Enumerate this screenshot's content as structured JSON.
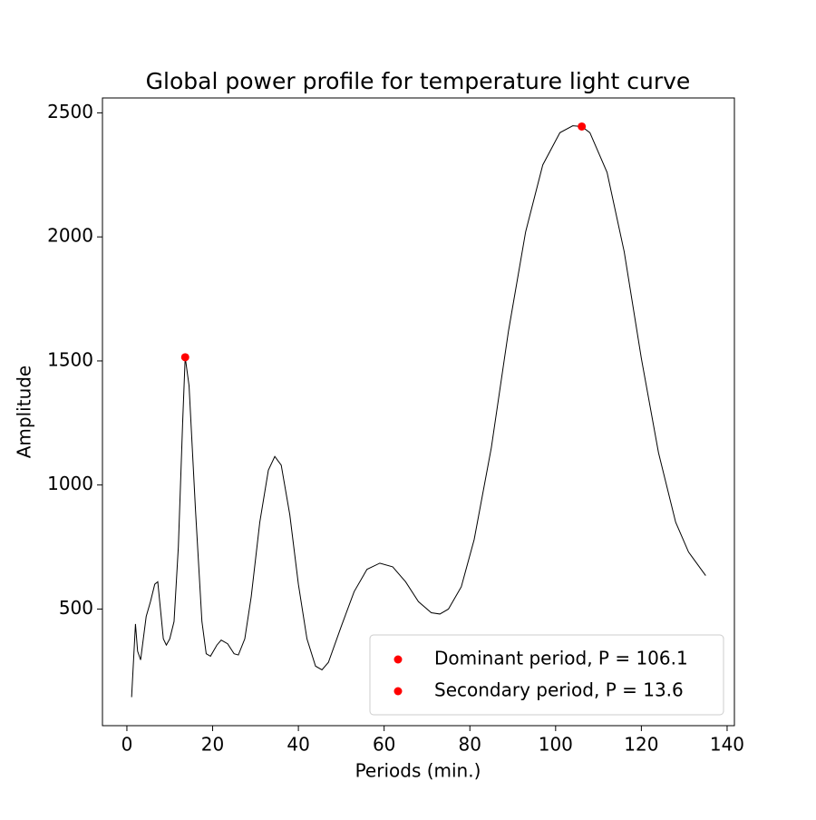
{
  "chart_data": {
    "type": "line",
    "title": "Global power profile for temperature light curve",
    "x_label": "Periods (min.)",
    "y_label": "Amplitude",
    "xlim": [
      -5.7,
      141.7
    ],
    "ylim": [
      30,
      2560
    ],
    "xticks": [
      0,
      20,
      40,
      60,
      80,
      100,
      120,
      140
    ],
    "yticks": [
      500,
      1000,
      1500,
      2000,
      2500
    ],
    "grid": false,
    "legend": "lower right",
    "series": [
      {
        "type": "line",
        "color": "#000000",
        "x": [
          1.1,
          2,
          2.5,
          3.2,
          4.5,
          5.5,
          6.5,
          7.2,
          8,
          8.5,
          9.2,
          10,
          11,
          12,
          13,
          13.6,
          14.5,
          16,
          17.5,
          18.5,
          19.5,
          21,
          22,
          23.5,
          25,
          26,
          27.5,
          29,
          31,
          33,
          34.5,
          36,
          38,
          40,
          42,
          44,
          45.5,
          47,
          50,
          53,
          56,
          59,
          62,
          65,
          68,
          71,
          73,
          75,
          78,
          81,
          85,
          89,
          93,
          97,
          101,
          104,
          106.1,
          108,
          112,
          116,
          120,
          124,
          128,
          131,
          135
        ],
        "values": [
          145,
          440,
          330,
          295,
          470,
          530,
          600,
          610,
          470,
          380,
          355,
          380,
          450,
          750,
          1250,
          1515,
          1400,
          900,
          450,
          320,
          310,
          355,
          375,
          360,
          320,
          315,
          380,
          550,
          850,
          1060,
          1115,
          1080,
          880,
          600,
          380,
          270,
          255,
          285,
          430,
          570,
          660,
          685,
          670,
          610,
          530,
          485,
          480,
          500,
          590,
          780,
          1150,
          1620,
          2020,
          2290,
          2420,
          2448,
          2445,
          2420,
          2260,
          1940,
          1510,
          1130,
          850,
          730,
          635
        ]
      },
      {
        "type": "scatter",
        "name": "Dominant period, P = 106.1",
        "color": "#ff0000",
        "x": [
          106.1
        ],
        "values": [
          2445
        ]
      },
      {
        "type": "scatter",
        "name": "Secondary period, P = 13.6",
        "color": "#ff0000",
        "x": [
          13.6
        ],
        "values": [
          1515
        ]
      }
    ]
  }
}
